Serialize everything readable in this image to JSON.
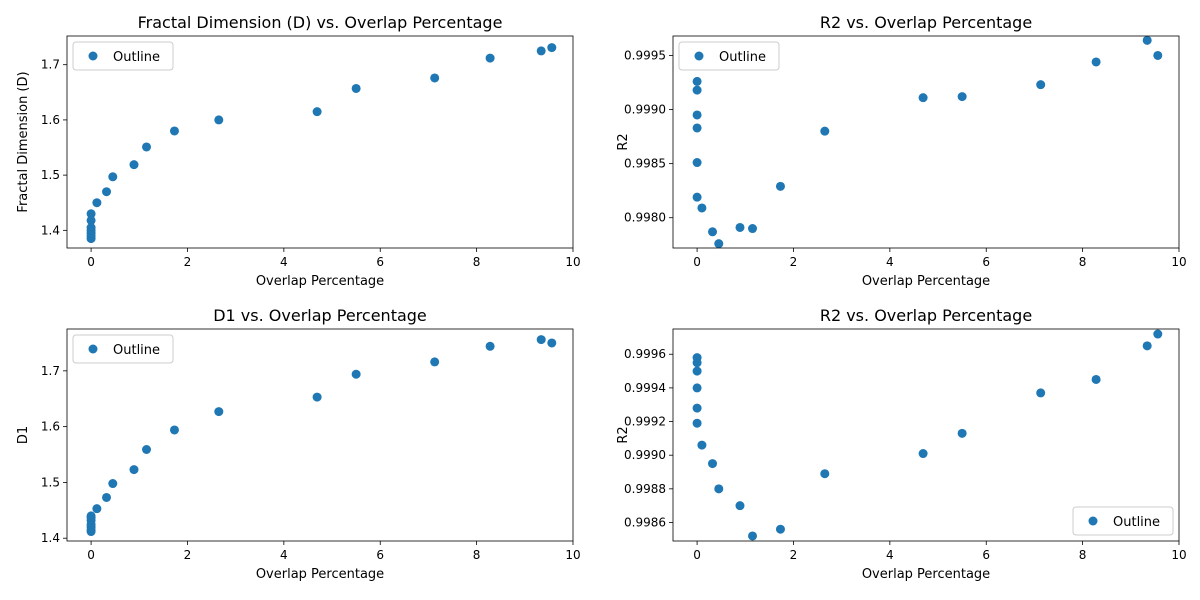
{
  "chart_data": [
    {
      "type": "scatter",
      "title": "Fractal Dimension (D) vs. Overlap Percentage",
      "xlabel": "Overlap Percentage",
      "ylabel": "Fractal Dimension (D)",
      "xlim": [
        -0.5,
        10.0
      ],
      "ylim": [
        1.368,
        1.752
      ],
      "xticks": [
        0,
        2,
        4,
        6,
        8,
        10
      ],
      "xtick_labels": [
        "0",
        "2",
        "4",
        "6",
        "8",
        "10"
      ],
      "yticks": [
        1.4,
        1.5,
        1.6,
        1.7
      ],
      "ytick_labels": [
        "1.4",
        "1.5",
        "1.6",
        "1.7"
      ],
      "grid": false,
      "legend": "upper left",
      "series": [
        {
          "name": "Outline",
          "color": "#1f77b4",
          "x": [
            0.0,
            0.0,
            0.0,
            0.0,
            0.0,
            0.0,
            0.0,
            0.12,
            0.32,
            0.45,
            0.89,
            1.15,
            1.73,
            2.65,
            4.69,
            5.5,
            7.13,
            8.28,
            9.34,
            9.56
          ],
          "y": [
            1.385,
            1.39,
            1.395,
            1.4,
            1.405,
            1.418,
            1.43,
            1.45,
            1.47,
            1.497,
            1.519,
            1.551,
            1.58,
            1.6,
            1.615,
            1.657,
            1.676,
            1.712,
            1.725,
            1.731
          ]
        }
      ]
    },
    {
      "type": "scatter",
      "title": "R2 vs. Overlap Percentage",
      "xlabel": "Overlap Percentage",
      "ylabel": "R2",
      "xlim": [
        -0.5,
        10.0
      ],
      "ylim": [
        0.99772,
        0.99968
      ],
      "xticks": [
        0,
        2,
        4,
        6,
        8,
        10
      ],
      "xtick_labels": [
        "0",
        "2",
        "4",
        "6",
        "8",
        "10"
      ],
      "yticks": [
        0.998,
        0.9985,
        0.999,
        0.9995
      ],
      "ytick_labels": [
        "0.9980",
        "0.9985",
        "0.9990",
        "0.9995"
      ],
      "grid": false,
      "legend": "upper left",
      "series": [
        {
          "name": "Outline",
          "color": "#1f77b4",
          "x": [
            0.0,
            0.0,
            0.0,
            0.0,
            0.0,
            0.0,
            0.1,
            0.32,
            0.45,
            0.89,
            1.15,
            1.73,
            2.65,
            4.69,
            5.5,
            7.13,
            8.28,
            9.34,
            9.56
          ],
          "y": [
            0.99926,
            0.99918,
            0.99895,
            0.99883,
            0.99851,
            0.99819,
            0.99809,
            0.99787,
            0.99776,
            0.99791,
            0.9979,
            0.99829,
            0.9988,
            0.99911,
            0.99912,
            0.99923,
            0.99944,
            0.99964,
            0.9995
          ]
        }
      ]
    },
    {
      "type": "scatter",
      "title": "D1 vs. Overlap Percentage",
      "xlabel": "Overlap Percentage",
      "ylabel": "D1",
      "xlim": [
        -0.5,
        10.0
      ],
      "ylim": [
        1.395,
        1.775
      ],
      "xticks": [
        0,
        2,
        4,
        6,
        8,
        10
      ],
      "xtick_labels": [
        "0",
        "2",
        "4",
        "6",
        "8",
        "10"
      ],
      "yticks": [
        1.4,
        1.5,
        1.6,
        1.7
      ],
      "ytick_labels": [
        "1.4",
        "1.5",
        "1.6",
        "1.7"
      ],
      "grid": false,
      "legend": "upper left",
      "series": [
        {
          "name": "Outline",
          "color": "#1f77b4",
          "x": [
            0.0,
            0.0,
            0.0,
            0.0,
            0.0,
            0.0,
            0.0,
            0.12,
            0.32,
            0.45,
            0.89,
            1.15,
            1.73,
            2.65,
            4.69,
            5.5,
            7.13,
            8.28,
            9.34,
            9.56
          ],
          "y": [
            1.412,
            1.415,
            1.42,
            1.425,
            1.432,
            1.437,
            1.44,
            1.453,
            1.473,
            1.498,
            1.523,
            1.559,
            1.594,
            1.627,
            1.653,
            1.694,
            1.716,
            1.744,
            1.756,
            1.75
          ]
        }
      ]
    },
    {
      "type": "scatter",
      "title": "R2 vs. Overlap Percentage",
      "xlabel": "Overlap Percentage",
      "ylabel": "R2",
      "xlim": [
        -0.5,
        10.0
      ],
      "ylim": [
        0.99849,
        0.99975
      ],
      "xticks": [
        0,
        2,
        4,
        6,
        8,
        10
      ],
      "xtick_labels": [
        "0",
        "2",
        "4",
        "6",
        "8",
        "10"
      ],
      "yticks": [
        0.9986,
        0.9988,
        0.999,
        0.9992,
        0.9994,
        0.9996
      ],
      "ytick_labels": [
        "0.9986",
        "0.9988",
        "0.9990",
        "0.9992",
        "0.9994",
        "0.9996"
      ],
      "grid": false,
      "legend": "lower right",
      "series": [
        {
          "name": "Outline",
          "color": "#1f77b4",
          "x": [
            0.0,
            0.0,
            0.0,
            0.0,
            0.0,
            0.0,
            0.1,
            0.32,
            0.45,
            0.89,
            1.15,
            1.73,
            2.65,
            4.69,
            5.5,
            7.13,
            8.28,
            9.34,
            9.56
          ],
          "y": [
            0.99958,
            0.99955,
            0.9995,
            0.9994,
            0.99928,
            0.99919,
            0.99906,
            0.99895,
            0.9988,
            0.9987,
            0.99852,
            0.99856,
            0.99889,
            0.99901,
            0.99913,
            0.99937,
            0.99945,
            0.99965,
            0.99972
          ]
        }
      ]
    }
  ]
}
